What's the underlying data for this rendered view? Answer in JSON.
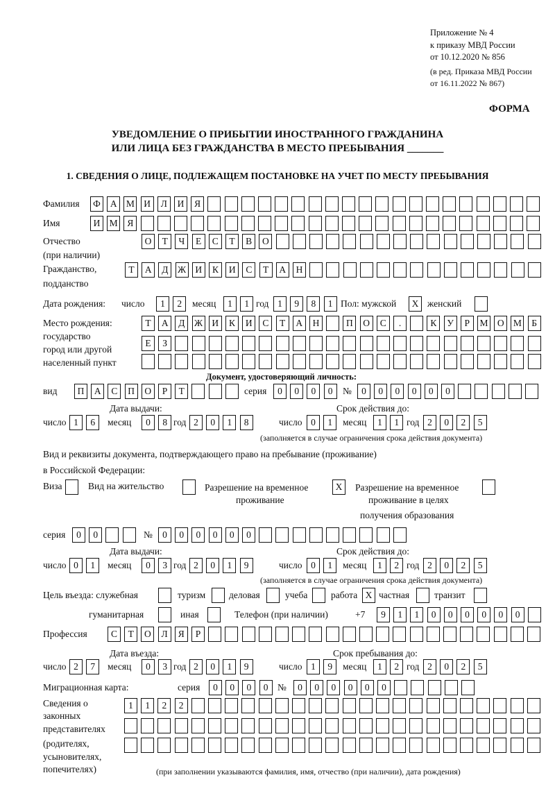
{
  "header": {
    "line1": "Приложение № 4",
    "line2": "к приказу МВД России",
    "line3": "от 10.12.2020 № 856",
    "line4": "(в ред. Приказа МВД России",
    "line5": "от 16.11.2022 № 867)",
    "form_label": "ФОРМА"
  },
  "title": {
    "line1": "УВЕДОМЛЕНИЕ О ПРИБЫТИИ ИНОСТРАННОГО ГРАЖДАНИНА",
    "line2": "ИЛИ ЛИЦА БЕЗ ГРАЖДАНСТВА В МЕСТО ПРЕБЫВАНИЯ _______"
  },
  "section1": {
    "heading": "1. СВЕДЕНИЯ О ЛИЦЕ, ПОДЛЕЖАЩЕМ ПОСТАНОВКЕ НА УЧЕТ ПО МЕСТУ ПРЕБЫВАНИЯ",
    "surname": {
      "label": "Фамилия",
      "value": "ФАМИЛИЯ"
    },
    "name": {
      "label": "Имя",
      "value": "ИМЯ"
    },
    "patronymic": {
      "label": "Отчество",
      "label2": "(при наличии)",
      "value": "ОТЧЕСТВО"
    },
    "citizenship": {
      "label": "Гражданство,",
      "label2": "подданство",
      "value": "ТАДЖИКИСТАН"
    },
    "birth_date": {
      "label": "Дата рождения:",
      "day_label": "число",
      "month_label": "месяц",
      "year_label": "год",
      "day": "12",
      "month": "11",
      "year": "1981"
    },
    "sex": {
      "label": "Пол: мужской",
      "male": "X",
      "female_label": "женский",
      "female": ""
    },
    "birth_place": {
      "label1": "Место рождения:",
      "label2": "государство",
      "label3": "город или другой",
      "label4": "населенный пункт",
      "row1": "ТАДЖИКИСТАН ПОС. КУРМОМБ",
      "row2": "ЕЗ",
      "row3": ""
    },
    "identity_doc": {
      "heading": "Документ, удостоверяющий личность:",
      "type_label": "вид",
      "type": "ПАСПОРТ",
      "series_label": "серия",
      "series": "0000",
      "number_label": "№",
      "number": "000000",
      "issue_label": "Дата выдачи:",
      "valid_label": "Срок действия до:",
      "day_label": "число",
      "month_label": "месяц",
      "year_label": "год",
      "issue_day": "16",
      "issue_month": "08",
      "issue_year": "2018",
      "valid_day": "01",
      "valid_month": "11",
      "valid_year": "2025",
      "note": "(заполняется в случае ограничения срока действия документа)"
    },
    "stay_doc": {
      "heading1": "Вид и реквизиты документа, подтверждающего право на пребывание (проживание)",
      "heading2": "в Российской Федерации:",
      "visa_label": "Виза",
      "visa": "",
      "residence_label": "Вид на жительство",
      "residence": "",
      "temp_label1": "Разрешение на временное",
      "temp_label2": "проживание",
      "temp": "X",
      "edu_label1": "Разрешение на временное",
      "edu_label2": "проживание в целях",
      "edu_label3": "получения образования",
      "edu": "",
      "series_label": "серия",
      "series": "00",
      "number_label": "№",
      "number": "000000",
      "issue_label": "Дата выдачи:",
      "valid_label": "Срок действия до:",
      "day_label": "число",
      "month_label": "месяц",
      "year_label": "год",
      "issue_day": "01",
      "issue_month": "03",
      "issue_year": "2019",
      "valid_day": "01",
      "valid_month": "12",
      "valid_year": "2025",
      "note": "(заполняется в случае ограничения срока действия документа)"
    },
    "purpose": {
      "label": "Цель въезда: служебная",
      "official": "",
      "tourism_label": "туризм",
      "tourism": "",
      "business_label": "деловая",
      "business": "",
      "study_label": "учеба",
      "study": "",
      "work_label": "работа",
      "work": "X",
      "private_label": "частная",
      "private": "",
      "transit_label": "транзит",
      "transit": "",
      "humanitarian_label": "гуманитарная",
      "humanitarian": "",
      "other_label": "иная",
      "other": ""
    },
    "phone": {
      "label": "Телефон (при наличии)",
      "prefix": "+7",
      "value": "911000000"
    },
    "profession": {
      "label": "Профессия",
      "value": "СТОЛЯР"
    },
    "entry": {
      "entry_label": "Дата въезда:",
      "stay_label": "Срок пребывания до:",
      "day_label": "число",
      "month_label": "месяц",
      "year_label": "год",
      "entry_day": "27",
      "entry_month": "03",
      "entry_year": "2019",
      "stay_day": "19",
      "stay_month": "12",
      "stay_year": "2025"
    },
    "migration_card": {
      "label": "Миграционная карта:",
      "series_label": "серия",
      "series": "0000",
      "number_label": "№",
      "number": "000000"
    },
    "representatives": {
      "label1": "Сведения о",
      "label2": "законных",
      "label3": "представителях",
      "label4": "(родителях,",
      "label5": "усыновителях,",
      "label6": "попечителях)",
      "row1": "1122",
      "row2": "",
      "row3": "",
      "note": "(при заполнении указываются фамилия, имя, отчество (при наличии), дата рождения)"
    }
  }
}
